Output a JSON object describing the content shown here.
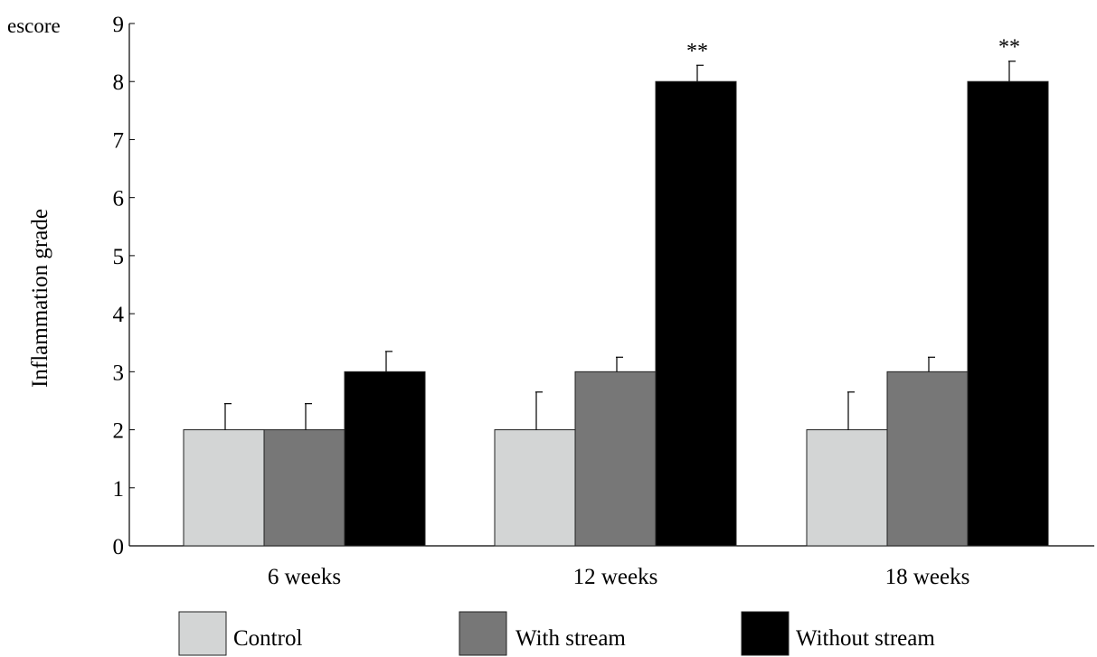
{
  "chart_data": {
    "type": "bar",
    "corner_label": "escore",
    "title": "",
    "xlabel": "",
    "ylabel": "Inflammation grade",
    "ylim": [
      0,
      9
    ],
    "yticks": [
      "0",
      "1",
      "2",
      "3",
      "4",
      "5",
      "6",
      "7",
      "8",
      "9"
    ],
    "categories": [
      "6 weeks",
      "12 weeks",
      "18 weeks"
    ],
    "series": [
      {
        "name": "Control",
        "color": "#d3d5d5",
        "values": [
          2,
          2,
          2
        ],
        "errors": [
          0.45,
          0.65,
          0.65
        ],
        "significance": [
          "",
          "",
          ""
        ]
      },
      {
        "name": "With stream",
        "color": "#777777",
        "values": [
          2,
          3,
          3
        ],
        "errors": [
          0.45,
          0.25,
          0.25
        ],
        "significance": [
          "",
          "",
          ""
        ]
      },
      {
        "name": "Without stream",
        "color": "#000000",
        "values": [
          3,
          8,
          8
        ],
        "errors": [
          0.35,
          0.28,
          0.35
        ],
        "significance": [
          "",
          "**",
          "**"
        ]
      }
    ],
    "legend_position": "bottom",
    "grid": false
  }
}
